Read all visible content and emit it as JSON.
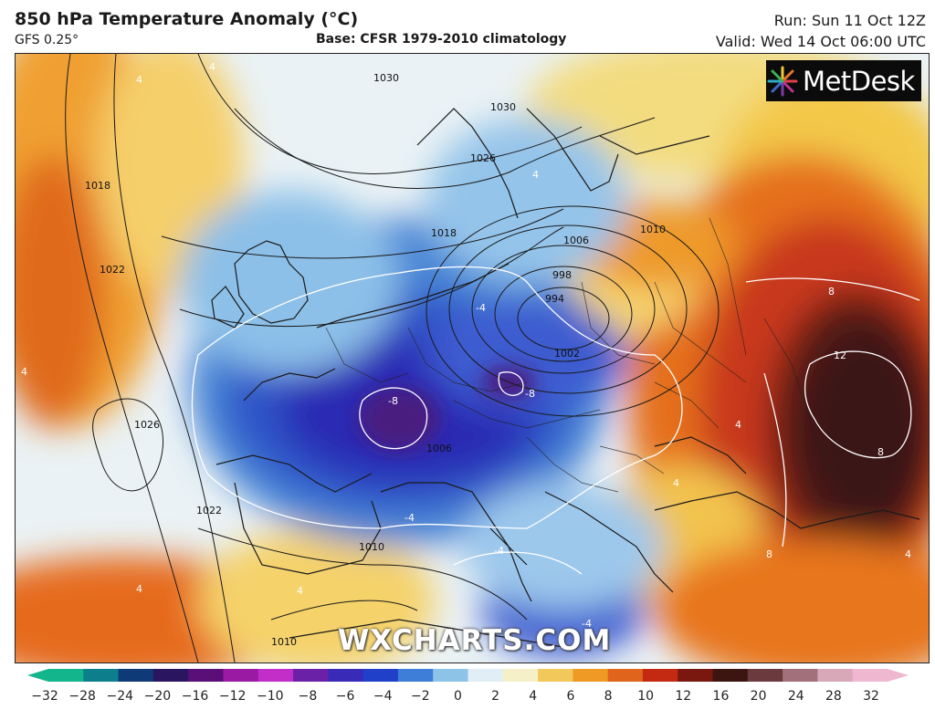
{
  "header": {
    "title": "850 hPa Temperature Anomaly (°C)",
    "model": "GFS 0.25°",
    "base": "Base: CFSR 1979-2010 climatology",
    "run": "Run: Sun 11 Oct 12Z",
    "valid": "Valid: Wed 14 Oct 06:00 UTC"
  },
  "branding": {
    "logo_text": "MetDesk",
    "watermark": "WXCHARTS.COM"
  },
  "isobar_labels": [
    "1030",
    "1030",
    "1026",
    "1018",
    "1018",
    "1010",
    "1006",
    "998",
    "994",
    "1002",
    "1022",
    "1026",
    "1022",
    "1010",
    "1010",
    "1006"
  ],
  "anomaly_labels": [
    "4",
    "4",
    "4",
    "4",
    "-4",
    "-8",
    "-8",
    "-4",
    "-4",
    "-4",
    "8",
    "12",
    "8",
    "8",
    "4",
    "4",
    "4",
    "4",
    "4"
  ],
  "colorbar": {
    "ticks": [
      "−32",
      "−28",
      "−24",
      "−20",
      "−16",
      "−12",
      "−10",
      "−8",
      "−6",
      "−4",
      "−2",
      "0",
      "2",
      "4",
      "6",
      "8",
      "10",
      "12",
      "16",
      "20",
      "24",
      "28",
      "32"
    ],
    "colors": [
      "#12b58c",
      "#0d7f8c",
      "#0f3a78",
      "#2a1560",
      "#5a0f78",
      "#9a1aa4",
      "#c22ec8",
      "#6a21a8",
      "#3a2ab8",
      "#2040c8",
      "#3f7ed8",
      "#8ec3e8",
      "#e2eef5",
      "#f6f0c8",
      "#f2c85a",
      "#ee9a24",
      "#e0641c",
      "#c42a12",
      "#7a1810",
      "#3c1410",
      "#6a3a3e",
      "#a2707a",
      "#d8a8b8",
      "#f0b8d0"
    ]
  },
  "colors": {
    "deep_cold": "#2a2ab0",
    "cold": "#3d7fd8",
    "cool": "#a8d0ea",
    "neutral": "#eef4f6",
    "warm": "#f2c050",
    "hot": "#e87a20",
    "very_hot": "#c8361a",
    "extreme": "#3a1a1a"
  }
}
